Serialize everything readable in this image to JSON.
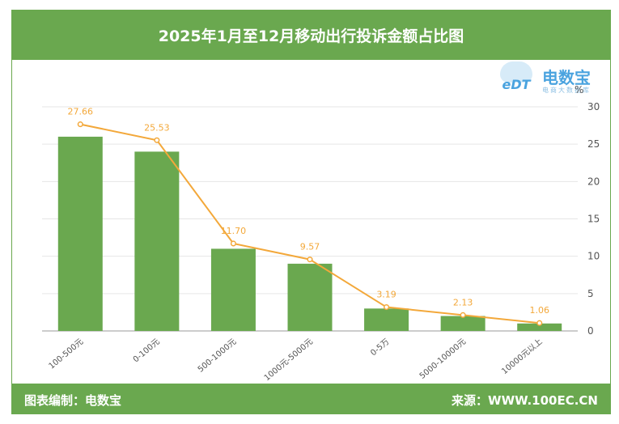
{
  "header": {
    "title": "2025年1月至12月移动出行投诉金额占比图"
  },
  "logo": {
    "text": "电数宝",
    "sub": "电商大数据库",
    "mark": "eDT"
  },
  "footer": {
    "left": "图表编制：电数宝",
    "right": "来源：WWW.100EC.CN"
  },
  "chart_data": {
    "type": "bar+line",
    "categories": [
      "100-500元",
      "0-100元",
      "500-1000元",
      "1000元-5000元",
      "0-5万",
      "5000-10000元",
      "10000元以上"
    ],
    "bar_values": [
      26.0,
      24.0,
      11.0,
      9.0,
      3.0,
      2.0,
      1.0
    ],
    "line_values": [
      27.66,
      25.53,
      11.7,
      9.57,
      3.19,
      2.13,
      1.06
    ],
    "line_labels": [
      "27.66",
      "25.53",
      "11.70",
      "9.57",
      "3.19",
      "2.13",
      "1.06"
    ],
    "y_axis": {
      "position": "right",
      "unit": "%",
      "ticks": [
        0,
        5,
        10,
        15,
        20,
        25,
        30
      ],
      "ylim": [
        0,
        30
      ]
    },
    "colors": {
      "bar": "#6aa84f",
      "line": "#f3a83a",
      "grid": "#e6e6e6"
    },
    "grid": true
  }
}
